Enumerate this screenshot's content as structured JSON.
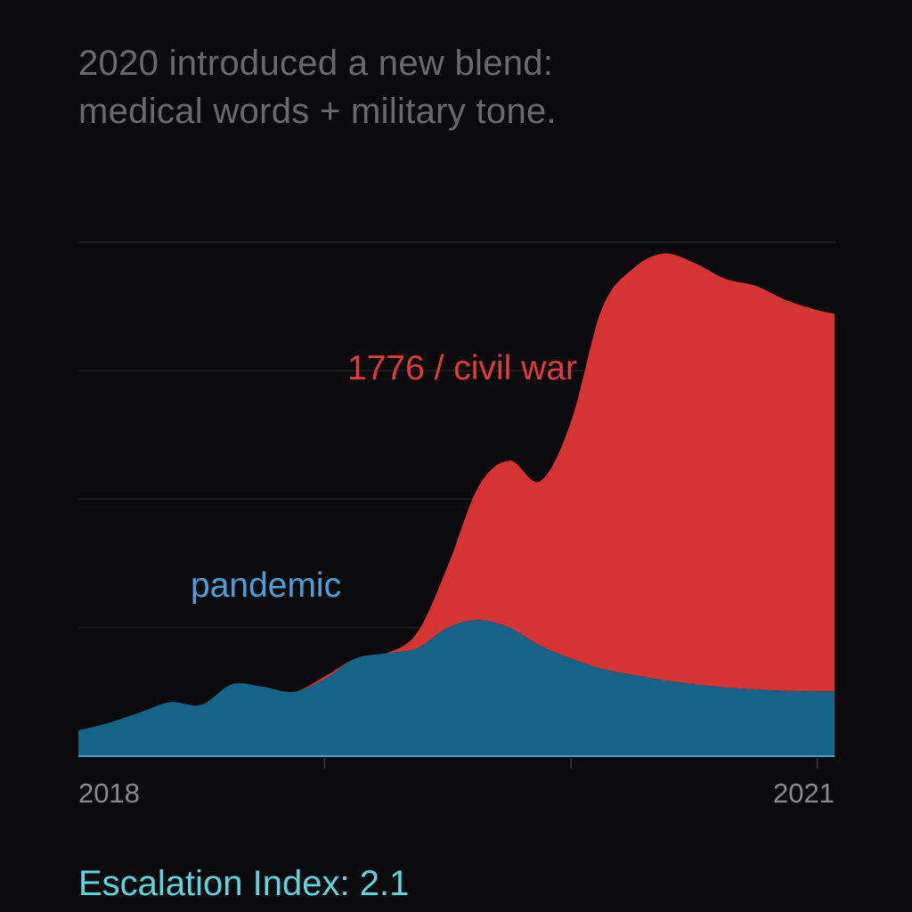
{
  "headline": {
    "line1": "2020 introduced a new blend:",
    "line2": "medical words + military tone."
  },
  "footer": {
    "label": "Escalation Index: 2.1"
  },
  "colors": {
    "background": "#0b0b0d",
    "pandemic": "#156387",
    "pandemic_label": "#4d9fd8",
    "civil_war": "#d63434",
    "civil_war_label": "#e03c3c",
    "grid": "#26262a",
    "axis": "#4a9fd3",
    "tick_label": "#8a8a8e",
    "footer": "#5fd3de"
  },
  "chart_data": {
    "type": "area",
    "stacked": true,
    "title": "",
    "xlabel": "",
    "ylabel": "",
    "x": [
      2018.0,
      2018.125,
      2018.25,
      2018.375,
      2018.5,
      2018.625,
      2018.75,
      2018.875,
      2019.0,
      2019.125,
      2019.25,
      2019.375,
      2019.5,
      2019.625,
      2019.75,
      2019.875,
      2020.0,
      2020.125,
      2020.25,
      2020.375,
      2020.5,
      2020.625,
      2020.75,
      2020.875,
      2021.0,
      2021.07
    ],
    "xlim": [
      2018.0,
      2021.07
    ],
    "ylim": [
      0,
      100
    ],
    "x_tick_labels": [
      {
        "x": 2018,
        "label": "2018"
      },
      {
        "x": 2021,
        "label": "2021"
      }
    ],
    "x_tick_marks": [
      2019,
      2020,
      2021
    ],
    "y_gridlines": [
      25,
      50,
      75,
      100
    ],
    "grid": true,
    "series": [
      {
        "name": "pandemic",
        "values": [
          5,
          6.5,
          8.5,
          10.5,
          10,
          14,
          13.5,
          12.5,
          15,
          19,
          20,
          21,
          25,
          26.5,
          25,
          21.5,
          19,
          17,
          15.8,
          14.8,
          14,
          13.4,
          13,
          12.7,
          12.6,
          12.6
        ],
        "label": "pandemic"
      },
      {
        "name": "1776 / civil war",
        "values": [
          0,
          0,
          0,
          0,
          0,
          0,
          0,
          0,
          0.5,
          0,
          0,
          3,
          12,
          26,
          32.5,
          32,
          46,
          70,
          79,
          83,
          82,
          79.5,
          78.5,
          76,
          74.2,
          73.5
        ],
        "label": "1776 / civil war"
      }
    ]
  }
}
